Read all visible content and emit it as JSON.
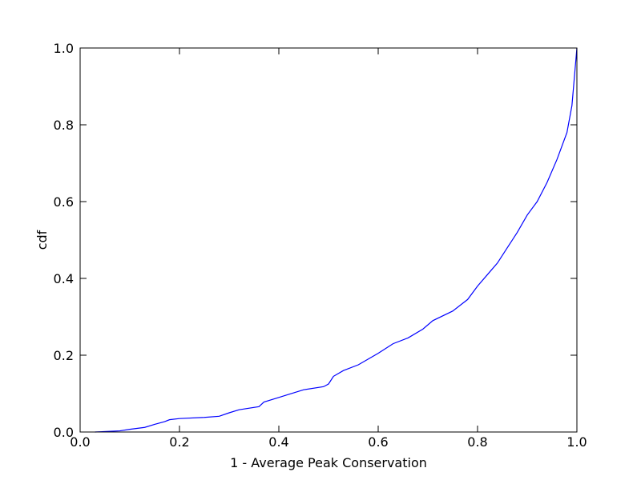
{
  "chart_data": {
    "type": "line",
    "x_label": "1 - Average Peak Conservation",
    "y_label": "cdf",
    "xlim": [
      0,
      1
    ],
    "ylim": [
      0,
      1
    ],
    "xticks": [
      {
        "value": 0,
        "label": "0.0"
      },
      0.2,
      0.4,
      0.6,
      0.8,
      {
        "value": 1,
        "label": "1.0"
      }
    ],
    "yticks": [
      {
        "value": 0,
        "label": "0.0"
      },
      0.2,
      0.4,
      0.6,
      0.8,
      {
        "value": 1,
        "label": "1.0"
      }
    ],
    "grid": false,
    "series": [
      {
        "color": "#0000ff",
        "x": [
          0.03,
          0.08,
          0.1,
          0.13,
          0.15,
          0.17,
          0.18,
          0.2,
          0.25,
          0.28,
          0.3,
          0.32,
          0.36,
          0.37,
          0.4,
          0.42,
          0.45,
          0.49,
          0.5,
          0.51,
          0.53,
          0.56,
          0.6,
          0.63,
          0.66,
          0.69,
          0.71,
          0.75,
          0.78,
          0.8,
          0.82,
          0.84,
          0.86,
          0.88,
          0.9,
          0.92,
          0.94,
          0.96,
          0.98,
          0.99,
          1.0
        ],
        "values": [
          0.0,
          0.003,
          0.007,
          0.012,
          0.02,
          0.027,
          0.032,
          0.035,
          0.038,
          0.041,
          0.05,
          0.058,
          0.066,
          0.078,
          0.09,
          0.098,
          0.11,
          0.118,
          0.125,
          0.145,
          0.16,
          0.175,
          0.205,
          0.23,
          0.245,
          0.268,
          0.29,
          0.315,
          0.345,
          0.38,
          0.41,
          0.44,
          0.48,
          0.52,
          0.565,
          0.6,
          0.65,
          0.71,
          0.78,
          0.85,
          1.0
        ]
      }
    ]
  }
}
